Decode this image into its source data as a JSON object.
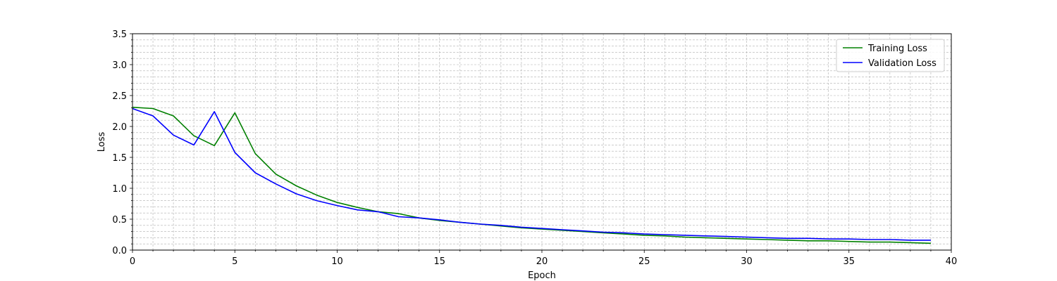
{
  "chart_data": {
    "type": "line",
    "title": "",
    "xlabel": "Epoch",
    "ylabel": "Loss",
    "xlim": [
      0,
      40
    ],
    "ylim": [
      0,
      3.5
    ],
    "xticks": [
      0,
      5,
      10,
      15,
      20,
      25,
      30,
      35,
      40
    ],
    "yticks": [
      0.0,
      0.5,
      1.0,
      1.5,
      2.0,
      2.5,
      3.0,
      3.5
    ],
    "ytick_labels": [
      "0.0",
      "0.5",
      "1.0",
      "1.5",
      "2.0",
      "2.5",
      "3.0",
      "3.5"
    ],
    "grid": true,
    "grid_style": "dashed, major and minor",
    "legend_position": "top-right",
    "x": [
      0,
      1,
      2,
      3,
      4,
      5,
      6,
      7,
      8,
      9,
      10,
      11,
      12,
      13,
      14,
      15,
      16,
      17,
      18,
      19,
      20,
      21,
      22,
      23,
      24,
      25,
      26,
      27,
      28,
      29,
      30,
      31,
      32,
      33,
      34,
      35,
      36,
      37,
      38,
      39
    ],
    "series": [
      {
        "name": "Training Loss",
        "color": "#008000",
        "values": [
          2.31,
          2.29,
          2.17,
          1.85,
          1.69,
          2.22,
          1.56,
          1.23,
          1.04,
          0.89,
          0.77,
          0.69,
          0.62,
          0.59,
          0.52,
          0.48,
          0.45,
          0.42,
          0.39,
          0.36,
          0.34,
          0.32,
          0.3,
          0.28,
          0.26,
          0.24,
          0.23,
          0.21,
          0.2,
          0.19,
          0.18,
          0.17,
          0.16,
          0.15,
          0.15,
          0.14,
          0.13,
          0.13,
          0.12,
          0.11
        ]
      },
      {
        "name": "Validation Loss",
        "color": "#0000ff",
        "values": [
          2.29,
          2.17,
          1.86,
          1.7,
          2.24,
          1.58,
          1.25,
          1.07,
          0.91,
          0.8,
          0.72,
          0.65,
          0.62,
          0.54,
          0.52,
          0.49,
          0.45,
          0.42,
          0.4,
          0.37,
          0.35,
          0.33,
          0.31,
          0.29,
          0.28,
          0.26,
          0.25,
          0.24,
          0.23,
          0.22,
          0.21,
          0.2,
          0.19,
          0.19,
          0.18,
          0.18,
          0.17,
          0.17,
          0.16,
          0.16
        ]
      }
    ]
  }
}
